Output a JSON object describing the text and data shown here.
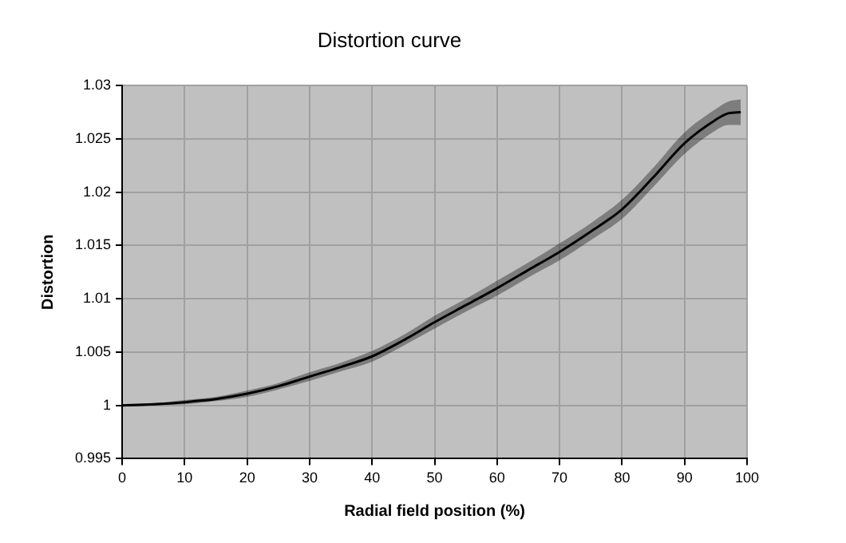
{
  "chart_data": {
    "type": "line",
    "title": "Distortion curve",
    "xlabel": "Radial field position (%)",
    "ylabel": "Distortion",
    "x": [
      0,
      5,
      10,
      15,
      20,
      25,
      30,
      35,
      40,
      45,
      50,
      55,
      60,
      65,
      70,
      75,
      80,
      85,
      90,
      95,
      97,
      99
    ],
    "series": [
      {
        "color": "#000000",
        "values": [
          1.0,
          1.0001,
          1.0003,
          1.0006,
          1.0011,
          1.0018,
          1.0027,
          1.0036,
          1.0046,
          1.0061,
          1.0078,
          1.0094,
          1.011,
          1.0127,
          1.0144,
          1.0163,
          1.0184,
          1.0214,
          1.0246,
          1.0268,
          1.0274,
          1.0275
        ],
        "lower": [
          0.9999,
          1.0,
          1.0001,
          1.0004,
          1.0008,
          1.0015,
          1.0023,
          1.0032,
          1.0041,
          1.0056,
          1.0072,
          1.0088,
          1.0103,
          1.012,
          1.0136,
          1.0155,
          1.0175,
          1.0205,
          1.0236,
          1.0258,
          1.0263,
          1.0263
        ],
        "upper": [
          1.0001,
          1.0002,
          1.0005,
          1.0008,
          1.0014,
          1.0021,
          1.0031,
          1.004,
          1.0051,
          1.0066,
          1.0084,
          1.01,
          1.0117,
          1.0134,
          1.0152,
          1.0171,
          1.0193,
          1.0223,
          1.0256,
          1.0278,
          1.0285,
          1.0287
        ]
      }
    ],
    "xlim": [
      0,
      100
    ],
    "xticks": [
      0,
      10,
      20,
      30,
      40,
      50,
      60,
      70,
      80,
      90,
      100
    ],
    "ylim": [
      0.995,
      1.03
    ],
    "yticks": [
      0.995,
      1,
      1.005,
      1.01,
      1.015,
      1.02,
      1.025,
      1.03
    ],
    "grid": true,
    "legend": false,
    "marker": "none",
    "line_style": "solid"
  }
}
